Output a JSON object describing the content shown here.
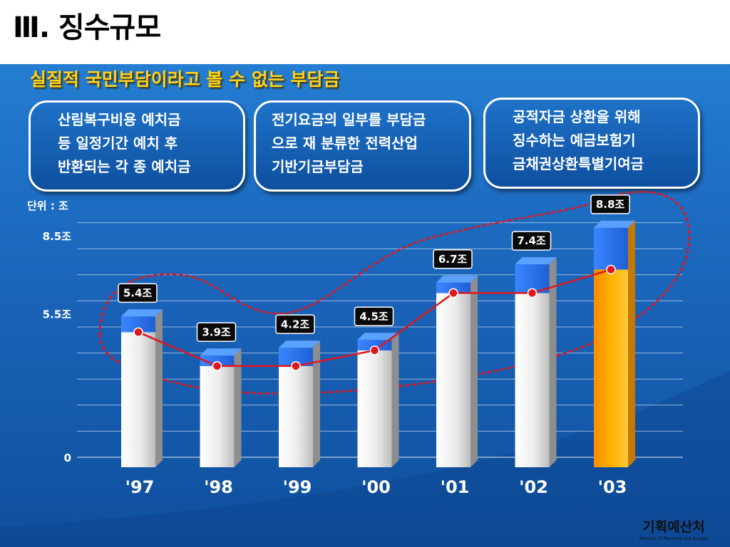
{
  "slide": {
    "title": "Ⅲ. 징수규모",
    "subtitle": "실질적 국민부담이라고 볼 수 없는 부담금",
    "notes": [
      [
        "산림복구비용 예치금",
        "등 일정기간 예치 후",
        "반환되는 각 종 예치금"
      ],
      [
        "전기요금의 일부를 부담금",
        "으로 재 분류한 전력산업",
        "기반기금부담금"
      ],
      [
        "공적자금 상환을 위해",
        "징수하는 예금보험기",
        "금채권상환특별기여금"
      ]
    ],
    "unit_label": "단위 : 조",
    "logo_ko": "기획예산처",
    "logo_en": "Ministry of Planning and Budget"
  },
  "colors": {
    "white_bar": "#ececec",
    "blue_cap": "#1f5fd6",
    "highlight_bar": "#ffb300",
    "line": "#e0161e",
    "marker": "#e0161e",
    "ellipse": "#e0161e"
  },
  "chart_data": {
    "type": "bar",
    "categories": [
      "'97",
      "'98",
      "'99",
      "'00",
      "'01",
      "'02",
      "'03"
    ],
    "series": [
      {
        "values": [
          5.4,
          3.9,
          4.2,
          4.5,
          6.7,
          7.4,
          8.8
        ]
      },
      {
        "values": [
          4.8,
          3.5,
          3.5,
          4.1,
          6.3,
          6.3,
          7.2
        ]
      }
    ],
    "labels": [
      "5.4조",
      "3.9조",
      "4.2조",
      "4.5조",
      "6.7조",
      "7.4조",
      "8.8조"
    ],
    "y_ticks": [
      {
        "value": 0,
        "label": "0"
      },
      {
        "value": 5.5,
        "label": "5.5조"
      },
      {
        "value": 8.5,
        "label": "8.5조"
      }
    ],
    "ylim": [
      0,
      9
    ],
    "highlight_index": 6,
    "grid": true
  }
}
